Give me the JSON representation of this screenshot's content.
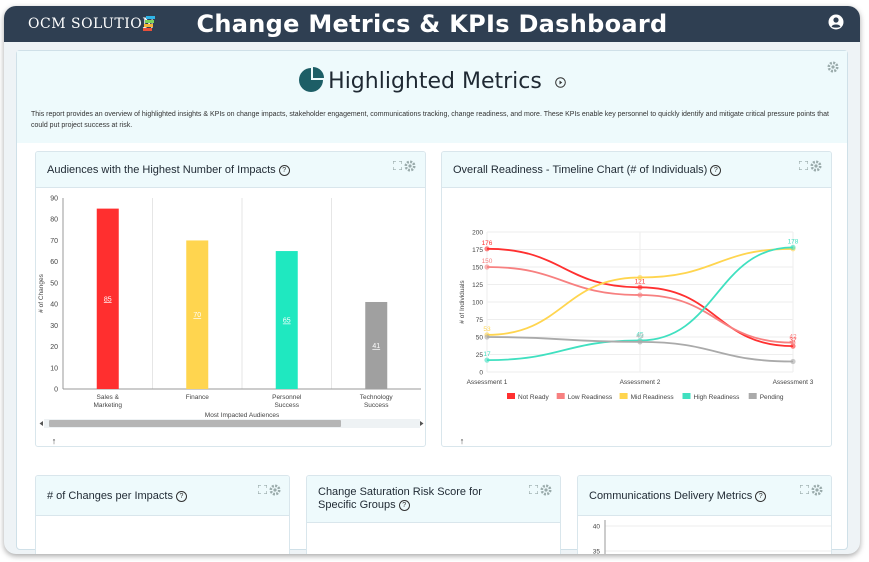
{
  "app": {
    "logo_text": "OCM SOLUTION",
    "title": "Change Metrics & KPIs Dashboard"
  },
  "highlighted": {
    "title": "Highlighted Metrics",
    "description": "This report provides an overview of highlighted insights & KPIs on change impacts, stakeholder engagement, communications tracking, change readiness, and more. These KPIs enable key personnel to quickly identify and mitigate critical pressure points that could put project success at risk."
  },
  "cards": {
    "audiences": {
      "title": "Audiences with the Highest Number of Impacts"
    },
    "readiness": {
      "title": "Overall Readiness - Timeline Chart (# of Individuals)"
    },
    "changes_per_impacts": {
      "title": "# of Changes per Impacts"
    },
    "saturation": {
      "title": "Change Saturation Risk Score for Specific Groups"
    },
    "communications": {
      "title": "Communications Delivery Metrics"
    }
  },
  "colors": {
    "topbar": "#2f3f52",
    "not_ready": "#ff3030",
    "low_readiness": "#f78080",
    "mid_readiness": "#ffd54f",
    "high_readiness": "#40e0c0",
    "pending": "#aaaaaa"
  },
  "chart_data": [
    {
      "type": "bar",
      "categories": [
        "Sales & Marketing",
        "Finance",
        "Personnel Success",
        "Technology Success"
      ],
      "values": [
        85,
        70,
        65,
        41
      ],
      "colors": [
        "#ff2f2f",
        "#ffd54f",
        "#1fe8c0",
        "#a0a0a0"
      ],
      "xlabel": "Most Impacted Audiences",
      "ylabel": "# of Changes",
      "ylim": [
        0,
        90
      ],
      "yticks": [
        0,
        10,
        20,
        30,
        40,
        50,
        60,
        70,
        80,
        90
      ]
    },
    {
      "type": "line",
      "x": [
        "Assessment 1",
        "Assessment 2",
        "Assessment 3"
      ],
      "ylabel": "# of Individuals",
      "ylim": [
        0,
        200
      ],
      "yticks": [
        0,
        25,
        50,
        75,
        100,
        125,
        150,
        175,
        200
      ],
      "series": [
        {
          "name": "Not Ready",
          "values": [
            176,
            121,
            37
          ],
          "labels": [
            "176",
            "121",
            "37"
          ]
        },
        {
          "name": "Low Readiness",
          "values": [
            150,
            110,
            42
          ],
          "labels": [
            "150",
            "",
            "42"
          ]
        },
        {
          "name": "Mid Readiness",
          "values": [
            53,
            135,
            176
          ],
          "labels": [
            "53",
            "",
            ""
          ]
        },
        {
          "name": "High Readiness",
          "values": [
            17,
            45,
            178
          ],
          "labels": [
            "17",
            "45",
            "178"
          ]
        },
        {
          "name": "Pending",
          "values": [
            50,
            43,
            15
          ],
          "labels": [
            "",
            "43",
            ""
          ]
        }
      ]
    },
    {
      "type": "line",
      "yticks": [
        35,
        40
      ]
    }
  ]
}
